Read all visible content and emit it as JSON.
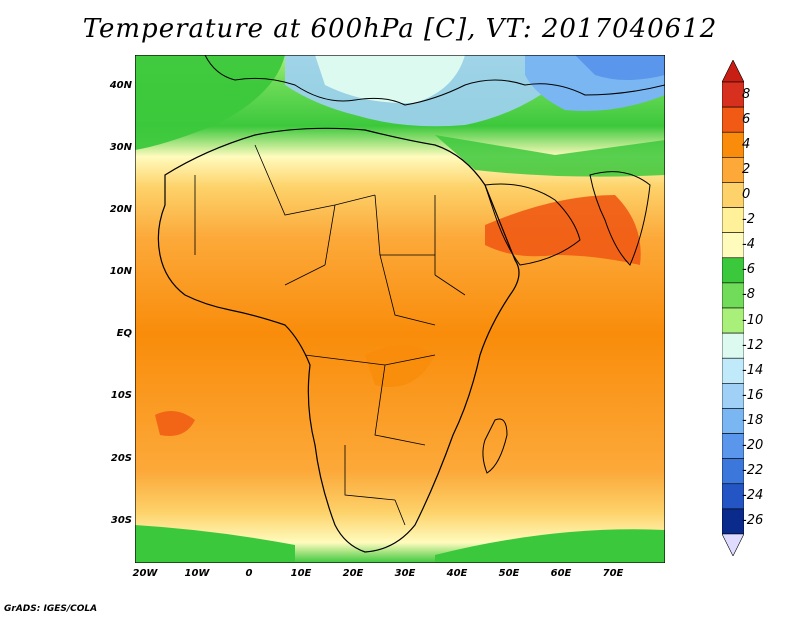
{
  "title": "Temperature at 600hPa [C], VT: 2017040612",
  "credit": "GrADS: IGES/COLA",
  "map": {
    "lat_labels": [
      "40N",
      "30N",
      "20N",
      "10N",
      "EQ",
      "10S",
      "20S",
      "30S"
    ],
    "lon_labels": [
      "20W",
      "10W",
      "0",
      "10E",
      "20E",
      "30E",
      "40E",
      "50E",
      "60E",
      "70E"
    ],
    "lon_range": [
      -22,
      80
    ],
    "lat_range": [
      -37,
      45
    ]
  },
  "colorbar": {
    "labels": [
      "8",
      "6",
      "4",
      "2",
      "0",
      "-2",
      "-4",
      "-6",
      "-8",
      "-10",
      "-12",
      "-14",
      "-16",
      "-18",
      "-20",
      "-22",
      "-24",
      "-26"
    ],
    "colors": [
      "#d7301f",
      "#f05a14",
      "#f98c0a",
      "#fca93a",
      "#fdd26a",
      "#fff09a",
      "#fffbbd",
      "#3cc83c",
      "#71dc5a",
      "#a8f07a",
      "#dcfaf0",
      "#c0eafa",
      "#a0d0f5",
      "#7ab6f2",
      "#5a96eb",
      "#3c78dc",
      "#2356c4",
      "#0a2a8c"
    ],
    "top_arrow_color": "#c81e14",
    "bottom_arrow_color": "#e0dcff"
  }
}
